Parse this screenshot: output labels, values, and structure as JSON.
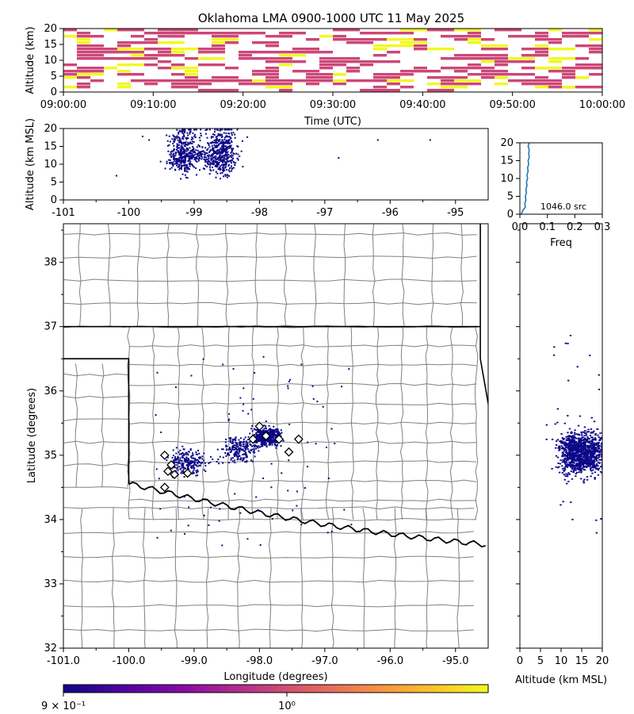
{
  "title": "Oklahoma LMA 0900-1000 UTC 11 May 2025",
  "chart_data": [
    {
      "id": "time_height",
      "type": "heatmap",
      "xlabel": "Time (UTC)",
      "ylabel": "Altitude (km)",
      "xticks": [
        "09:00:00",
        "09:10:00",
        "09:20:00",
        "09:30:00",
        "09:40:00",
        "09:50:00",
        "10:00:00"
      ],
      "xlim_minutes": [
        0,
        60
      ],
      "ylim": [
        0,
        20
      ],
      "yticks": [
        0,
        5,
        10,
        15,
        20
      ],
      "colors": [
        "#cc4778",
        "#f0f921"
      ]
    },
    {
      "id": "lon_alt",
      "type": "scatter",
      "xlabel": "",
      "ylabel": "Altitude (km MSL)",
      "xlim": [
        -101,
        -94.5
      ],
      "xticks": [
        -101,
        -100,
        -99,
        -98,
        -97,
        -96,
        -95
      ],
      "ylim": [
        0,
        20
      ],
      "yticks": [
        0,
        5,
        10,
        15,
        20
      ],
      "sparse_points": [
        [
          -100.2,
          7
        ],
        [
          -99.8,
          18
        ],
        [
          -99.7,
          17
        ],
        [
          -96.8,
          12
        ],
        [
          -96.2,
          17
        ],
        [
          -95.4,
          17
        ]
      ]
    },
    {
      "id": "alt_histogram",
      "type": "line",
      "xlabel": "Freq",
      "xlim": [
        0,
        0.3
      ],
      "xticks": [
        "0.0",
        "0.1",
        "0.2",
        "0.3"
      ],
      "ylim": [
        0,
        20
      ],
      "yticks": [
        0,
        5,
        10,
        15,
        20
      ],
      "annotation": "1046.0 src",
      "profile": [
        [
          0.005,
          0
        ],
        [
          0.01,
          1
        ],
        [
          0.02,
          2
        ],
        [
          0.018,
          3
        ],
        [
          0.022,
          4
        ],
        [
          0.02,
          5
        ],
        [
          0.024,
          6
        ],
        [
          0.022,
          7
        ],
        [
          0.026,
          8
        ],
        [
          0.024,
          9
        ],
        [
          0.028,
          10
        ],
        [
          0.026,
          11
        ],
        [
          0.03,
          12
        ],
        [
          0.028,
          13
        ],
        [
          0.032,
          14
        ],
        [
          0.03,
          15
        ],
        [
          0.034,
          16
        ],
        [
          0.032,
          17
        ],
        [
          0.034,
          18
        ],
        [
          0.03,
          19
        ],
        [
          0.034,
          20
        ]
      ],
      "color": "#1f77b4"
    },
    {
      "id": "plan_view",
      "type": "scatter",
      "xlabel": "Longitude (degrees)",
      "ylabel": "Latitude (degrees)",
      "xlim": [
        -101.0,
        -94.5
      ],
      "xticks": [
        "-101.0",
        "-100.0",
        "-99.0",
        "-98.0",
        "-97.0",
        "-96.0",
        "-95.0"
      ],
      "ylim": [
        32,
        38.6
      ],
      "yticks": [
        32,
        33,
        34,
        35,
        36,
        37,
        38
      ],
      "stations": [
        [
          -99.45,
          35.0
        ],
        [
          -99.35,
          34.85
        ],
        [
          -99.4,
          34.75
        ],
        [
          -99.3,
          34.7
        ],
        [
          -99.1,
          34.72
        ],
        [
          -99.45,
          34.5
        ],
        [
          -98.0,
          35.45
        ],
        [
          -97.9,
          35.3
        ],
        [
          -98.1,
          35.25
        ],
        [
          -97.7,
          35.25
        ],
        [
          -97.4,
          35.25
        ],
        [
          -97.55,
          35.05
        ]
      ],
      "cluster_centers": [
        [
          -97.9,
          35.3
        ],
        [
          -98.3,
          35.1
        ],
        [
          -99.1,
          34.9
        ]
      ]
    },
    {
      "id": "alt_lat",
      "type": "scatter",
      "xlabel": "Altitude (km MSL)",
      "xlim": [
        0,
        20
      ],
      "xticks": [
        0,
        5,
        10,
        15,
        20
      ],
      "ylim": [
        32,
        38.6
      ]
    }
  ],
  "colorbar": {
    "label_low": "9 × 10⁻¹",
    "label_mid": "10⁰",
    "stops": [
      "#0d0887",
      "#5302a3",
      "#8b0aa5",
      "#b83289",
      "#db5c68",
      "#f48849",
      "#febd2a",
      "#f0f921"
    ]
  },
  "colors": {
    "point": "#0d0887",
    "axis": "#000000",
    "county": "#808080"
  }
}
